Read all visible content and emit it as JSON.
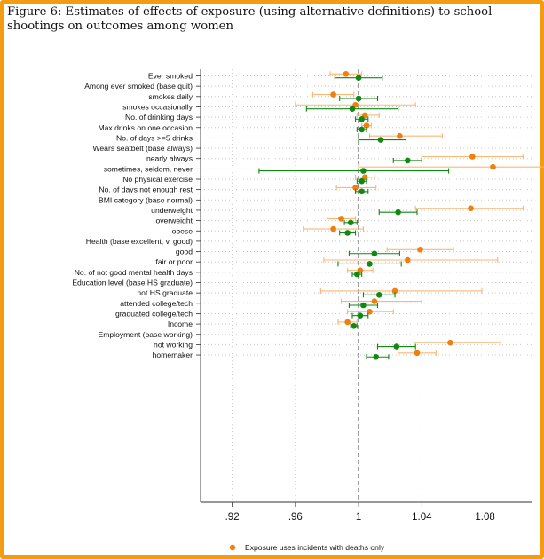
{
  "figure_title": "Figure 6: Estimates of effects of exposure (using alternative definitions) to school shootings on outcomes among women",
  "colors": {
    "green": "#118811",
    "orange": "#ee7f10",
    "orange_ci": "#f8b776",
    "frame": "#f39c12"
  },
  "legend": [
    {
      "label": "Exposure uses incidents with deaths only",
      "color": "#ee7f10"
    }
  ],
  "chart_data": {
    "type": "scatter",
    "subtype": "coefficient-plot-with-confidence-intervals",
    "xlim": [
      0.9,
      1.11
    ],
    "x_ticks": [
      0.92,
      0.96,
      1,
      1.04,
      1.08
    ],
    "x_tick_labels": [
      ".92",
      ".96",
      "1",
      "1.04",
      "1.08"
    ],
    "reference_line": 1,
    "grid": true,
    "legend_position": "bottom",
    "rows": [
      {
        "label": "Ever smoked",
        "header": false,
        "green": [
          1.0,
          0.985,
          1.015
        ],
        "orange": [
          0.992,
          0.982,
          1.002
        ]
      },
      {
        "label": "Among ever smoked (base quit)",
        "header": true
      },
      {
        "label": "smokes daily",
        "header": false,
        "green": [
          1.0,
          0.988,
          1.012
        ],
        "orange": [
          0.984,
          0.971,
          0.997
        ]
      },
      {
        "label": "smokes occasionally",
        "header": false,
        "green": [
          0.996,
          0.967,
          1.025
        ],
        "orange": [
          0.998,
          0.96,
          1.036
        ]
      },
      {
        "label": "No. of drinking days",
        "header": false,
        "green": [
          1.002,
          0.998,
          1.006
        ],
        "orange": [
          1.004,
          0.999,
          1.013
        ]
      },
      {
        "label": "Max drinks on one occasion",
        "header": false,
        "green": [
          1.002,
          0.999,
          1.005
        ],
        "orange": [
          1.005,
          1.002,
          1.008
        ]
      },
      {
        "label": "No. of days >=5 drinks",
        "header": false,
        "green": [
          1.014,
          1.0,
          1.03
        ],
        "orange": [
          1.026,
          1.007,
          1.053
        ]
      },
      {
        "label": "Wears seatbelt (base always)",
        "header": true
      },
      {
        "label": "nearly always",
        "header": false,
        "green": [
          1.031,
          1.022,
          1.04
        ],
        "orange": [
          1.072,
          1.04,
          1.104
        ]
      },
      {
        "label": "sometimes, seldom, never",
        "header": false,
        "green": [
          1.003,
          0.937,
          1.057
        ],
        "orange": [
          1.085,
          1.0,
          1.125
        ]
      },
      {
        "label": "No physical exercise",
        "header": false,
        "green": [
          1.002,
          0.999,
          1.005
        ],
        "orange": [
          1.004,
          0.998,
          1.01
        ]
      },
      {
        "label": "No. of days not enough rest",
        "header": false,
        "green": [
          1.002,
          0.998,
          1.006
        ],
        "orange": [
          0.998,
          0.986,
          1.011
        ]
      },
      {
        "label": "BMI category (base normal)",
        "header": true
      },
      {
        "label": "underweight",
        "header": false,
        "green": [
          1.025,
          1.013,
          1.037
        ],
        "orange": [
          1.071,
          1.036,
          1.104
        ]
      },
      {
        "label": "overweight",
        "header": false,
        "green": [
          0.995,
          0.991,
          0.999
        ],
        "orange": [
          0.989,
          0.98,
          0.998
        ]
      },
      {
        "label": "obese",
        "header": false,
        "green": [
          0.993,
          0.988,
          0.998
        ],
        "orange": [
          0.984,
          0.965,
          1.003
        ]
      },
      {
        "label": "Health (base excellent, v. good)",
        "header": true
      },
      {
        "label": "good",
        "header": false,
        "green": [
          1.01,
          0.994,
          1.026
        ],
        "orange": [
          1.039,
          1.018,
          1.06
        ]
      },
      {
        "label": "fair or poor",
        "header": false,
        "green": [
          1.007,
          0.987,
          1.027
        ],
        "orange": [
          1.031,
          0.978,
          1.088
        ]
      },
      {
        "label": "No. of not good mental health days",
        "header": false,
        "green": [
          0.999,
          0.996,
          1.002
        ],
        "orange": [
          1.001,
          0.993,
          1.009
        ]
      },
      {
        "label": "Education level (base HS graduate)",
        "header": true
      },
      {
        "label": "not HS graduate",
        "header": false,
        "green": [
          1.013,
          1.003,
          1.023
        ],
        "orange": [
          1.023,
          0.976,
          1.078
        ]
      },
      {
        "label": "attended college/tech",
        "header": false,
        "green": [
          1.003,
          0.994,
          1.012
        ],
        "orange": [
          1.01,
          0.989,
          1.04
        ]
      },
      {
        "label": "graduated college/tech",
        "header": false,
        "green": [
          1.001,
          0.996,
          1.006
        ],
        "orange": [
          1.007,
          0.993,
          1.022
        ]
      },
      {
        "label": "Income",
        "header": false,
        "green": [
          0.997,
          0.995,
          0.999
        ],
        "orange": [
          0.993,
          0.987,
          0.999
        ]
      },
      {
        "label": "Employment (base working)",
        "header": true
      },
      {
        "label": "not working",
        "header": false,
        "green": [
          1.024,
          1.012,
          1.036
        ],
        "orange": [
          1.058,
          1.035,
          1.09
        ]
      },
      {
        "label": "homemaker",
        "header": false,
        "green": [
          1.011,
          1.005,
          1.019
        ],
        "orange": [
          1.037,
          1.025,
          1.049
        ]
      }
    ]
  }
}
